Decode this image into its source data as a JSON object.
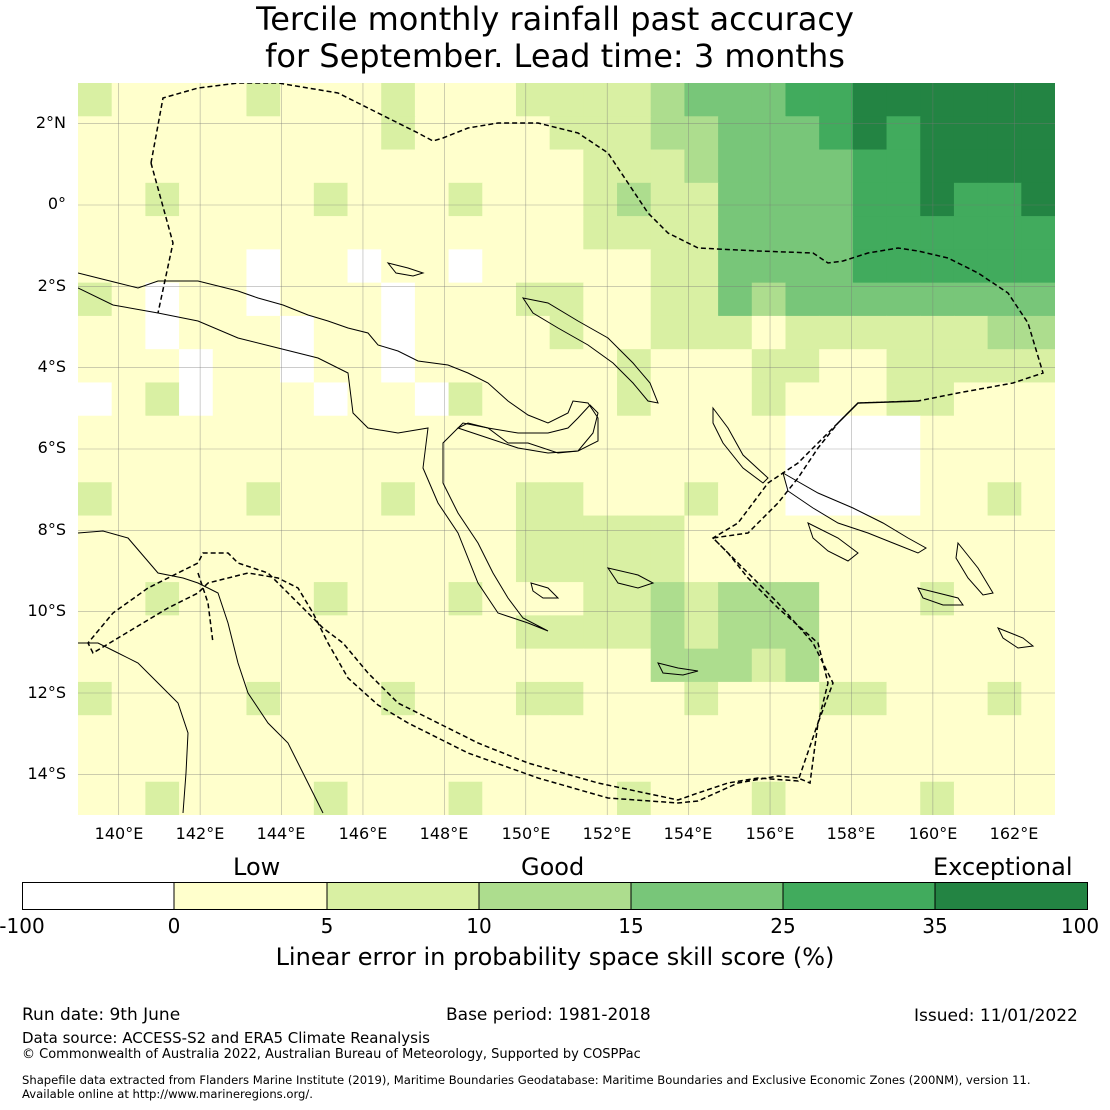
{
  "title_line1": "Tercile monthly rainfall past accuracy",
  "title_line2": "for September. Lead time: 3 months",
  "lat_labels": [
    "2°N",
    "0°",
    "2°S",
    "4°S",
    "6°S",
    "8°S",
    "10°S",
    "12°S",
    "14°S"
  ],
  "lon_labels": [
    "140°E",
    "142°E",
    "144°E",
    "146°E",
    "148°E",
    "150°E",
    "152°E",
    "154°E",
    "156°E",
    "158°E",
    "160°E",
    "162°E"
  ],
  "map_extent": {
    "lon_min": 139.0,
    "lon_max": 163.0,
    "lat_min": -15.0,
    "lat_max": 3.0
  },
  "categories": {
    "low": "Low",
    "good": "Good",
    "exceptional": "Exceptional"
  },
  "colorbar": {
    "ticks": [
      "-100",
      "0",
      "5",
      "10",
      "15",
      "25",
      "35",
      "100"
    ],
    "title": "Linear error in probability space skill score (%)",
    "bins": [
      {
        "range": [
          -100,
          0
        ],
        "color": "#ffffff"
      },
      {
        "range": [
          0,
          5
        ],
        "color": "#ffffcc"
      },
      {
        "range": [
          5,
          10
        ],
        "color": "#d9f0a3"
      },
      {
        "range": [
          10,
          15
        ],
        "color": "#addd8e"
      },
      {
        "range": [
          15,
          25
        ],
        "color": "#78c679"
      },
      {
        "range": [
          25,
          35
        ],
        "color": "#41ab5d"
      },
      {
        "range": [
          35,
          100
        ],
        "color": "#238443"
      }
    ]
  },
  "footer": {
    "run_date": "Run date: 9th June",
    "base_period": "Base period: 1981-2018",
    "issued": "Issued: 11/01/2022",
    "data_source": "Data source: ACCESS-S2 and ERA5 Climate Reanalysis",
    "copyright": "© Commonwealth of Australia 2022, Australian Bureau of Meteorology, Supported by COSPPac",
    "shapefile_line1": "Shapefile data extracted from Flanders Marine Institute (2019), Maritime Boundaries Geodatabase: Maritime Boundaries and Exclusive Economic Zones (200NM), version 11.",
    "shapefile_line2": "Available online at http://www.marineregions.org/."
  }
}
